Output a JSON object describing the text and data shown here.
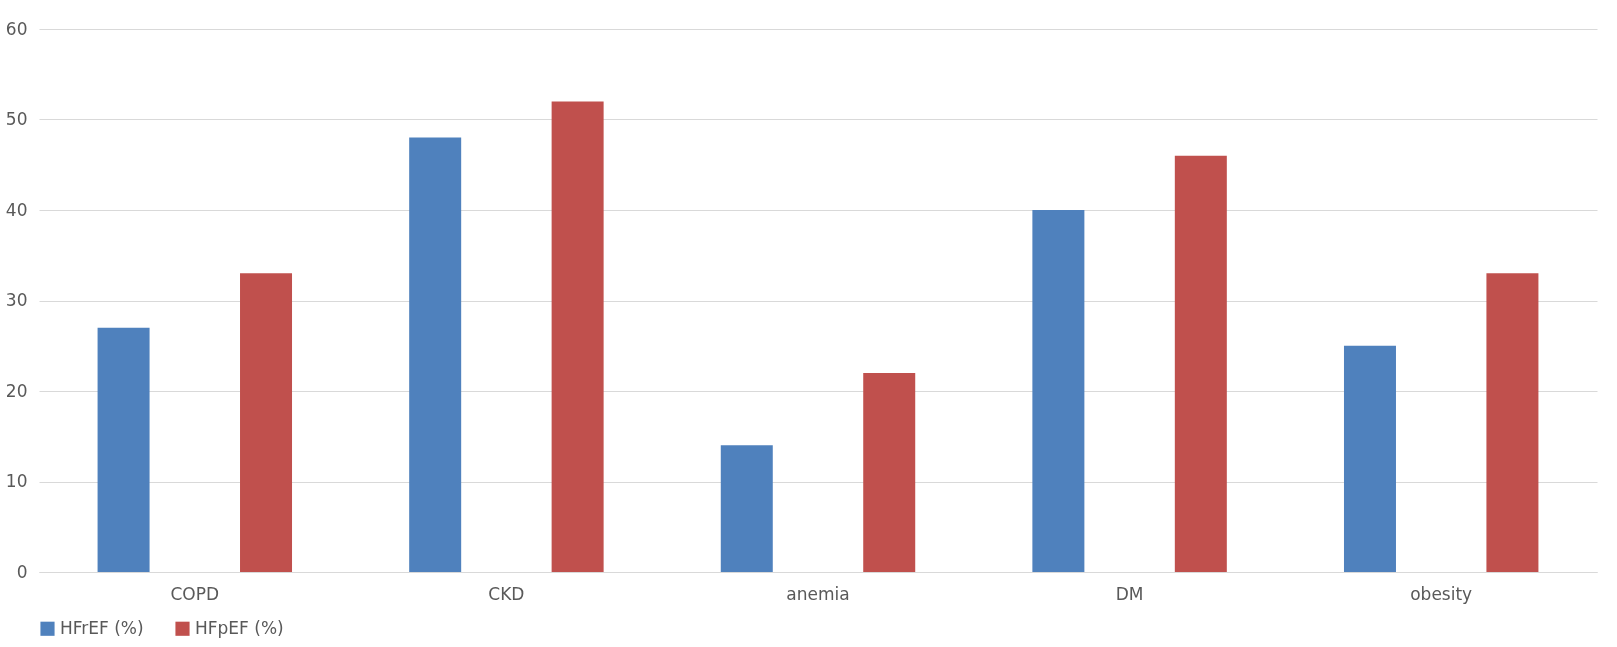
{
  "chart_data": {
    "type": "bar",
    "categories": [
      "COPD",
      "CKD",
      "anemia",
      "DM",
      "obesity"
    ],
    "series": [
      {
        "name": "HFrEF (%)",
        "color": "#4f81bd",
        "values": [
          27,
          48,
          14,
          40,
          25
        ]
      },
      {
        "name": "HFpEF (%)",
        "color": "#c0504d",
        "values": [
          33,
          52,
          22,
          46,
          33
        ]
      }
    ],
    "ylim": [
      0,
      60
    ],
    "yticks": [
      0,
      10,
      20,
      30,
      40,
      50,
      60
    ],
    "grid": "y",
    "legend": "bottom"
  }
}
